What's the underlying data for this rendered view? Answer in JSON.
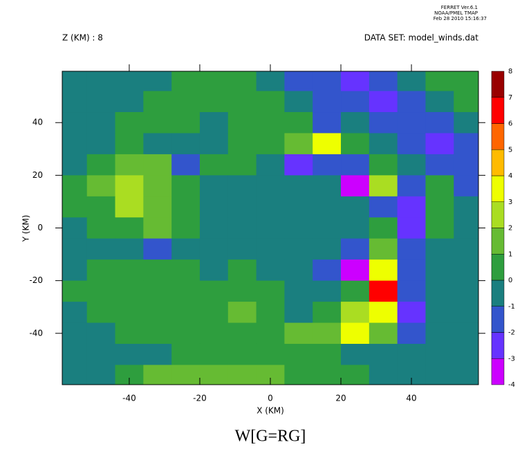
{
  "chart_data": {
    "type": "contour",
    "header": [
      "FERRET Ver.6.1",
      "NOAA/PMEL TMAP",
      "Feb 28 2010 15:16:37"
    ],
    "subtitle_left": "Z (KM) : 8",
    "subtitle_right": "DATA SET: model_winds.dat",
    "title": "W[G=RG]",
    "x_label": "X (KM)",
    "y_label": "Y (KM)",
    "xlim": [
      -59,
      59
    ],
    "ylim": [
      -59.5,
      59.5
    ],
    "xticks": [
      -40,
      -20,
      0,
      20,
      40
    ],
    "yticks": [
      -40,
      -20,
      0,
      20,
      40
    ],
    "x": [
      -56,
      -48,
      -40,
      -32,
      -24,
      -16,
      -8,
      0,
      8,
      16,
      24,
      32,
      40,
      48,
      56
    ],
    "y": [
      56,
      48,
      40,
      32,
      24,
      16,
      8,
      0,
      -8,
      -16,
      -24,
      -32,
      -40,
      -48,
      -56
    ],
    "z": [
      [
        -0.5,
        -0.5,
        -0.5,
        -0.5,
        0.5,
        0.5,
        0.5,
        -0.5,
        -1.5,
        -1.5,
        -2.5,
        -1.5,
        -0.5,
        0.5,
        0.5
      ],
      [
        -0.5,
        -0.5,
        -0.5,
        0.5,
        0.5,
        0.5,
        0.5,
        0.5,
        -0.5,
        -1.5,
        -1.5,
        -2.5,
        -1.5,
        -0.5,
        0.5
      ],
      [
        -0.5,
        -0.5,
        0.5,
        0.5,
        0.5,
        -0.5,
        0.5,
        0.5,
        0.5,
        -1.5,
        -0.5,
        -1.5,
        -1.5,
        -1.5,
        -0.5
      ],
      [
        -0.5,
        -0.5,
        0.5,
        -0.5,
        -0.5,
        -0.5,
        0.5,
        0.5,
        1.5,
        3.5,
        0.5,
        -0.5,
        -1.5,
        -2.5,
        -1.5
      ],
      [
        -0.5,
        0.5,
        1.5,
        1.5,
        -1.5,
        0.5,
        0.5,
        -0.5,
        -2.5,
        -1.5,
        -1.5,
        0.5,
        -0.5,
        -1.5,
        -1.5
      ],
      [
        0.5,
        1.5,
        2.5,
        1.5,
        0.5,
        -0.5,
        -0.5,
        -0.5,
        -0.5,
        -0.5,
        -3.5,
        2.5,
        -1.5,
        0.5,
        -1.5
      ],
      [
        0.5,
        0.5,
        2.5,
        1.5,
        0.5,
        -0.5,
        -0.5,
        -0.5,
        -0.5,
        -0.5,
        -0.5,
        -1.5,
        -2.5,
        0.5,
        -0.5
      ],
      [
        -0.5,
        0.5,
        0.5,
        1.5,
        0.5,
        -0.5,
        -0.5,
        -0.5,
        -0.5,
        -0.5,
        -0.5,
        0.5,
        -2.5,
        0.5,
        -0.5
      ],
      [
        -0.5,
        -0.5,
        -0.5,
        -1.5,
        -0.5,
        -0.5,
        -0.5,
        -0.5,
        -0.5,
        -0.5,
        -1.5,
        1.5,
        -1.5,
        -0.5,
        -0.5
      ],
      [
        -0.5,
        0.5,
        0.5,
        0.5,
        0.5,
        -0.5,
        0.5,
        -0.5,
        -0.5,
        -1.5,
        -3.5,
        3.5,
        -1.5,
        -0.5,
        -0.5
      ],
      [
        0.5,
        0.5,
        0.5,
        0.5,
        0.5,
        0.5,
        0.5,
        0.5,
        -0.5,
        -0.5,
        0.5,
        6.5,
        -1.5,
        -0.5,
        -0.5
      ],
      [
        -0.5,
        0.5,
        0.5,
        0.5,
        0.5,
        0.5,
        1.5,
        0.5,
        -0.5,
        0.5,
        2.5,
        3.5,
        -2.5,
        -0.5,
        -0.5
      ],
      [
        -0.5,
        -0.5,
        0.5,
        0.5,
        0.5,
        0.5,
        0.5,
        0.5,
        1.5,
        1.5,
        3.5,
        1.5,
        -1.5,
        -0.5,
        -0.5
      ],
      [
        -0.5,
        -0.5,
        -0.5,
        -0.5,
        0.5,
        0.5,
        0.5,
        0.5,
        0.5,
        0.5,
        -0.5,
        -0.5,
        -0.5,
        -0.5,
        -0.5
      ],
      [
        -0.5,
        -0.5,
        0.5,
        1.5,
        1.5,
        1.5,
        1.5,
        1.5,
        0.5,
        0.5,
        0.5,
        -0.5,
        -0.5,
        -0.5,
        -0.5
      ]
    ],
    "levels": [
      -4,
      -3,
      -2,
      -1,
      0,
      1,
      2,
      3,
      4,
      5,
      6,
      7,
      8
    ],
    "colors": [
      "#cc00ff",
      "#6633ff",
      "#3355cc",
      "#1a7f7f",
      "#2e9e3e",
      "#66bb33",
      "#aadd22",
      "#eeff00",
      "#ffbb00",
      "#ff6600",
      "#ff0000",
      "#990000"
    ]
  }
}
